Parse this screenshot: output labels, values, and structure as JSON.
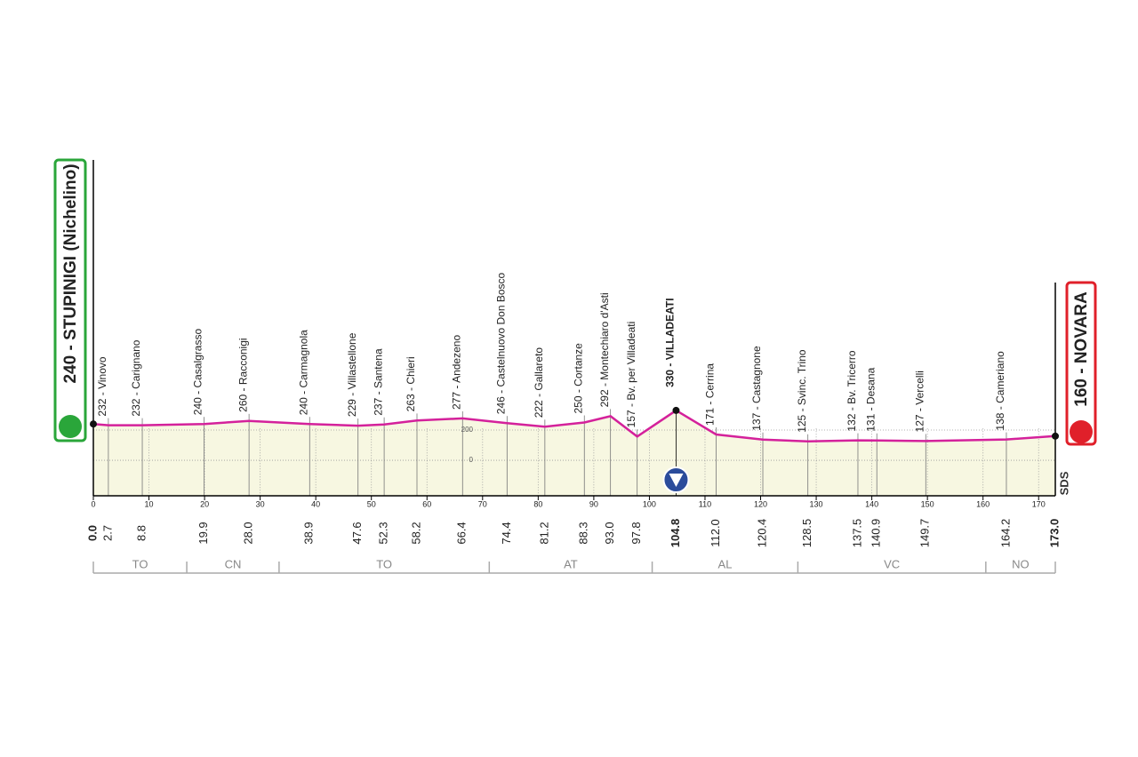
{
  "chart_data": {
    "type": "area",
    "x": [
      0.0,
      2.7,
      8.8,
      19.9,
      28.0,
      38.9,
      47.6,
      52.3,
      58.2,
      66.4,
      74.4,
      81.2,
      88.3,
      93.0,
      97.8,
      104.8,
      112.0,
      120.4,
      128.5,
      137.5,
      140.9,
      149.7,
      164.2,
      173.0
    ],
    "x_labels": [
      "0.0",
      "2.7",
      "8.8",
      "19.9",
      "28.0",
      "38.9",
      "47.6",
      "52.3",
      "58.2",
      "66.4",
      "74.4",
      "81.2",
      "88.3",
      "93.0",
      "97.8",
      "104.8",
      "112.0",
      "120.4",
      "128.5",
      "137.5",
      "140.9",
      "149.7",
      "164.2",
      "173.0"
    ],
    "values": [
      240,
      232,
      232,
      240,
      260,
      240,
      229,
      237,
      263,
      277,
      246,
      222,
      250,
      292,
      157,
      330,
      171,
      137,
      125,
      132,
      131,
      127,
      138,
      160
    ],
    "value_labels": [
      "240 - STUPINIGI (Nichelino)",
      "232 - Vinovo",
      "232 - Carignano",
      "240 - Casalgrasso",
      "260 - Racconigi",
      "240 - Carmagnola",
      "229 - Villastellone",
      "237 - Santena",
      "263 - Chieri",
      "277 - Andezeno",
      "246 - Castelnuovo Don Bosco",
      "222 - Gallareto",
      "250 - Cortanze",
      "292 - Montechiaro d'Asti",
      "157 - Bv. per Villadeati",
      "330 - VILLADEATI",
      "171 - Cerrina",
      "137 - Castagnone",
      "125 - Svinc. Trino",
      "132 - Bv. Tricerro",
      "131 - Desana",
      "127 - Vercelli",
      "138 - Cameriano",
      "160 - NOVARA"
    ],
    "highlight_point": 15,
    "color": "#d4219b",
    "fill": "#f7f7e1",
    "xlim": [
      0,
      173
    ],
    "ylim": [
      -235,
      1988
    ],
    "xticks": [
      0,
      10,
      20,
      30,
      40,
      50,
      60,
      70,
      80,
      90,
      100,
      110,
      120,
      130,
      140,
      150,
      160,
      170
    ],
    "yticks": [
      0,
      200
    ],
    "regions": [
      {
        "name": "TO",
        "from": 0,
        "to": 16.8
      },
      {
        "name": "CN",
        "from": 16.8,
        "to": 33.4
      },
      {
        "name": "TO",
        "from": 33.4,
        "to": 71.2
      },
      {
        "name": "AT",
        "from": 71.2,
        "to": 100.5
      },
      {
        "name": "AL",
        "from": 100.5,
        "to": 126.7
      },
      {
        "name": "VC",
        "from": 126.7,
        "to": 160.5
      },
      {
        "name": "NO",
        "from": 160.5,
        "to": 173
      }
    ],
    "logo": "SDS"
  }
}
